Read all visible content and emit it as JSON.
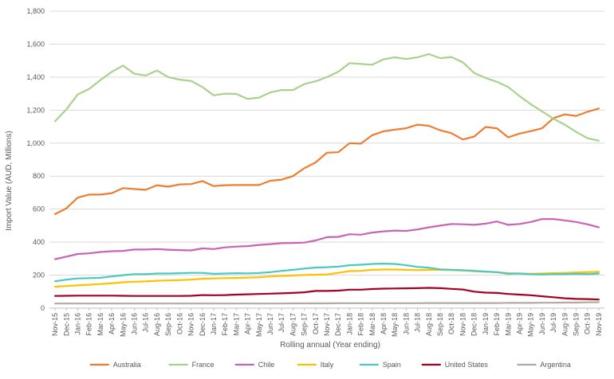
{
  "chart_data": {
    "type": "line",
    "title": "",
    "xlabel": "Rolling annual (Year ending)",
    "ylabel": "Import Value (AUD, Millions)",
    "ylim": [
      0,
      1800
    ],
    "yticks": [
      0,
      200,
      400,
      600,
      800,
      1000,
      1200,
      1400,
      1600,
      1800
    ],
    "ytick_labels": [
      "0",
      "200",
      "400",
      "600",
      "800",
      "1,000",
      "1,200",
      "1,400",
      "1,600",
      "1,800"
    ],
    "grid": true,
    "legend_position": "bottom",
    "categories": [
      "Nov-15",
      "Dec-15",
      "Jan-16",
      "Feb-16",
      "Mar-16",
      "Apr-16",
      "May-16",
      "Jun-16",
      "Jul-16",
      "Aug-16",
      "Sep-16",
      "Oct-16",
      "Nov-16",
      "Dec-16",
      "Jan-17",
      "Feb-17",
      "Mar-17",
      "Apr-17",
      "May-17",
      "Jun-17",
      "Jul-17",
      "Aug-17",
      "Sep-17",
      "Oct-17",
      "Nov-17",
      "Dec-17",
      "Jan-18",
      "Feb-18",
      "Mar-18",
      "Apr-18",
      "May-18",
      "Jun-18",
      "Jul-18",
      "Aug-18",
      "Sep-18",
      "Oct-18",
      "Nov-18",
      "Dec-18",
      "Jan-19",
      "Feb-19",
      "Mar-19",
      "Apr-19",
      "May-19",
      "Jun-19",
      "Jul-19",
      "Aug-19",
      "Sep-19",
      "Oct-19",
      "Nov-19"
    ],
    "series": [
      {
        "name": "Australia",
        "color": "#ED7D31",
        "values": [
          570,
          605,
          670,
          688,
          688,
          697,
          727,
          722,
          717,
          745,
          736,
          750,
          752,
          770,
          740,
          745,
          746,
          746,
          746,
          772,
          779,
          800,
          848,
          883,
          942,
          945,
          1000,
          997,
          1048,
          1072,
          1082,
          1090,
          1112,
          1105,
          1078,
          1060,
          1022,
          1040,
          1098,
          1090,
          1035,
          1058,
          1073,
          1090,
          1152,
          1174,
          1165,
          1190,
          1210
        ]
      },
      {
        "name": "France",
        "color": "#A9D18E",
        "values": [
          1133,
          1205,
          1295,
          1328,
          1382,
          1432,
          1470,
          1420,
          1410,
          1440,
          1400,
          1385,
          1377,
          1340,
          1290,
          1300,
          1298,
          1268,
          1276,
          1308,
          1322,
          1322,
          1358,
          1375,
          1400,
          1433,
          1485,
          1480,
          1475,
          1508,
          1520,
          1510,
          1520,
          1540,
          1515,
          1522,
          1490,
          1425,
          1395,
          1372,
          1340,
          1285,
          1236,
          1192,
          1148,
          1112,
          1068,
          1030,
          1015
        ]
      },
      {
        "name": "Chile",
        "color": "#C864B4",
        "values": [
          297,
          312,
          328,
          332,
          340,
          345,
          347,
          355,
          355,
          358,
          354,
          352,
          350,
          362,
          358,
          368,
          373,
          376,
          383,
          388,
          394,
          395,
          397,
          410,
          430,
          432,
          448,
          445,
          458,
          465,
          470,
          468,
          477,
          490,
          500,
          510,
          508,
          505,
          512,
          525,
          505,
          510,
          522,
          540,
          540,
          532,
          522,
          508,
          490
        ]
      },
      {
        "name": "Italy",
        "color": "#FFC000",
        "values": [
          130,
          134,
          138,
          142,
          146,
          150,
          157,
          160,
          162,
          166,
          168,
          170,
          173,
          178,
          180,
          182,
          183,
          185,
          187,
          192,
          196,
          198,
          201,
          202,
          204,
          214,
          225,
          226,
          232,
          234,
          234,
          232,
          230,
          232,
          232,
          230,
          228,
          224,
          220,
          218,
          212,
          210,
          208,
          210,
          212,
          214,
          216,
          218,
          220
        ]
      },
      {
        "name": "Spain",
        "color": "#4BC8C0",
        "values": [
          163,
          173,
          180,
          182,
          184,
          192,
          200,
          206,
          206,
          210,
          210,
          212,
          214,
          214,
          208,
          210,
          212,
          211,
          213,
          218,
          226,
          232,
          240,
          246,
          248,
          252,
          260,
          263,
          268,
          270,
          268,
          260,
          250,
          245,
          235,
          232,
          230,
          226,
          222,
          218,
          208,
          210,
          206,
          204,
          206,
          207,
          208,
          206,
          210
        ]
      },
      {
        "name": "United States",
        "color": "#A50021",
        "values": [
          74,
          75,
          76,
          76,
          76,
          76,
          75,
          74,
          74,
          74,
          74,
          74,
          75,
          79,
          78,
          79,
          82,
          84,
          86,
          88,
          90,
          92,
          96,
          104,
          104,
          106,
          112,
          112,
          116,
          118,
          119,
          120,
          121,
          123,
          121,
          117,
          113,
          100,
          94,
          92,
          86,
          82,
          78,
          72,
          66,
          60,
          56,
          55,
          52
        ]
      },
      {
        "name": "Argentina",
        "color": "#B4A8A0",
        "values": [
          28,
          28,
          28,
          28,
          28,
          28,
          28,
          28,
          28,
          28,
          28,
          28,
          28,
          28,
          28,
          28,
          28,
          28,
          28,
          28,
          28,
          29,
          29,
          29,
          29,
          30,
          30,
          30,
          30,
          30,
          30,
          30,
          30,
          31,
          31,
          31,
          31,
          31,
          31,
          31,
          32,
          32,
          32,
          33,
          33,
          34,
          34,
          35,
          36
        ]
      }
    ]
  }
}
